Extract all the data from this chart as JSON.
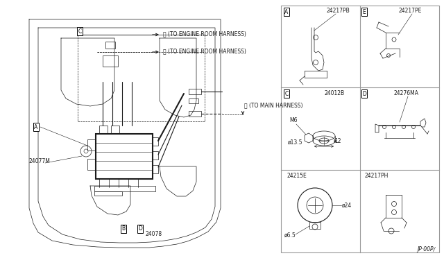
{
  "bg_color": "#ffffff",
  "line_color": "#1a1a1a",
  "fig_width": 6.4,
  "fig_height": 3.72,
  "dpi": 100,
  "part_labels": {
    "A": "24217PB",
    "B": "24217PE",
    "C": "24012B",
    "D": "24276MA",
    "E1": "24215E",
    "E2": "24217PH"
  },
  "harness_a": "(TO ENGINE ROOM HARNESS)",
  "harness_b": "(TO ENGINE ROOM HARNESS)",
  "harness_c": "(TO MAIN HARNESS)",
  "main_part": "24077M",
  "sub_part": "24078",
  "dim_M6": "M6",
  "dim_135": "ø13.5",
  "dim_12": "12",
  "dim_24": "ø24",
  "dim_65": "ø6.5",
  "footer": "JP·00P∕",
  "grid_color": "#999999",
  "lw_thin": 0.5,
  "lw_med": 0.8,
  "lw_thick": 1.5,
  "fs": 5.5
}
